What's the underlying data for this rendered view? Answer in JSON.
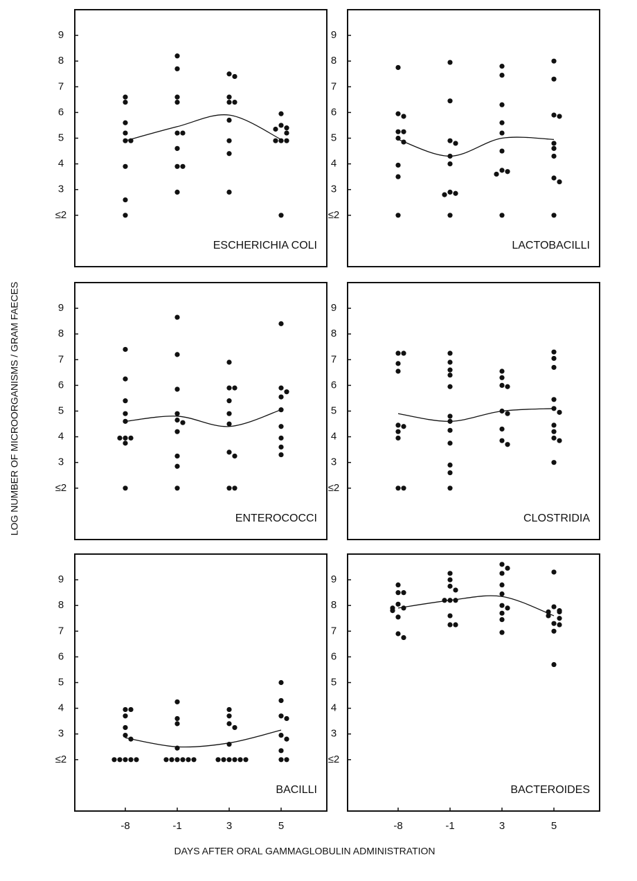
{
  "y_label": "LOG NUMBER OF MICROORGANISMS / GRAM FAECES",
  "x_label": "DAYS AFTER ORAL GAMMAGLOBULIN ADMINISTRATION",
  "chart_data": [
    {
      "type": "scatter",
      "title": "ESCHERICHIA COLI",
      "categories": [
        "-8",
        "-1",
        "3",
        "5"
      ],
      "values": [
        [
          6.6,
          6.4,
          5.6,
          5.2,
          4.9,
          4.9,
          3.9,
          2.6,
          2
        ],
        [
          8.2,
          7.7,
          6.6,
          6.4,
          5.2,
          5.2,
          4.6,
          3.9,
          3.9,
          2.9
        ],
        [
          7.5,
          7.4,
          6.6,
          6.4,
          6.4,
          5.7,
          4.9,
          4.4,
          2.9
        ],
        [
          5.95,
          5.5,
          5.4,
          5.35,
          5.2,
          4.9,
          4.9,
          4.9,
          2
        ]
      ],
      "trend": [
        4.9,
        5.45,
        5.9,
        4.95
      ],
      "color": "#111111",
      "ylim": [
        0,
        10
      ],
      "yticks": [
        {
          "value": 2,
          "label": "≤2"
        },
        3,
        4,
        5,
        6,
        7,
        8,
        9
      ]
    },
    {
      "type": "scatter",
      "title": "LACTOBACILLI",
      "categories": [
        "-8",
        "-1",
        "3",
        "5"
      ],
      "values": [
        [
          7.75,
          5.95,
          5.85,
          5.25,
          5.25,
          5,
          4.85,
          3.95,
          3.5,
          2
        ],
        [
          7.95,
          6.45,
          4.9,
          4.8,
          4.3,
          4.0,
          2.9,
          2.85,
          2.8,
          2
        ],
        [
          7.8,
          7.45,
          6.3,
          5.6,
          5.2,
          4.5,
          3.75,
          3.7,
          3.6,
          2
        ],
        [
          8,
          7.3,
          5.9,
          5.85,
          4.8,
          4.6,
          4.3,
          3.45,
          3.3,
          2
        ]
      ],
      "trend": [
        4.95,
        4.3,
        5.0,
        4.95
      ],
      "color": "#111111",
      "ylim": [
        0,
        10
      ],
      "yticks": [
        {
          "value": 2,
          "label": "≤2"
        },
        3,
        4,
        5,
        6,
        7,
        8,
        9
      ]
    },
    {
      "type": "scatter",
      "title": "ENTEROCOCCI",
      "categories": [
        "-8",
        "-1",
        "3",
        "5"
      ],
      "values": [
        [
          7.4,
          6.25,
          5.4,
          4.9,
          4.6,
          3.95,
          3.95,
          3.95,
          3.75,
          2
        ],
        [
          8.65,
          7.2,
          5.85,
          4.9,
          4.65,
          4.55,
          4.2,
          3.25,
          2.85,
          2
        ],
        [
          6.9,
          5.9,
          5.9,
          5.4,
          4.9,
          4.5,
          3.4,
          3.25,
          2,
          2
        ],
        [
          8.4,
          5.9,
          5.75,
          5.55,
          5.05,
          4.4,
          3.95,
          3.6,
          3.3
        ]
      ],
      "trend": [
        4.6,
        4.8,
        4.4,
        5.05
      ],
      "color": "#111111",
      "ylim": [
        0,
        10
      ],
      "yticks": [
        {
          "value": 2,
          "label": "≤2"
        },
        3,
        4,
        5,
        6,
        7,
        8,
        9
      ]
    },
    {
      "type": "scatter",
      "title": "CLOSTRIDIA",
      "categories": [
        "-8",
        "-1",
        "3",
        "5"
      ],
      "values": [
        [
          7.25,
          7.25,
          6.85,
          6.55,
          4.45,
          4.4,
          4.2,
          3.95,
          2,
          2
        ],
        [
          7.25,
          6.9,
          6.6,
          6.4,
          5.95,
          4.8,
          4.6,
          4.25,
          3.75,
          2.9,
          2.6,
          2
        ],
        [
          6.55,
          6.3,
          6,
          5.95,
          5,
          4.9,
          4.3,
          3.85,
          3.7
        ],
        [
          7.3,
          7.05,
          6.7,
          5.45,
          5.1,
          4.95,
          4.45,
          4.2,
          3.95,
          3.85,
          3
        ]
      ],
      "trend": [
        4.9,
        4.6,
        5.0,
        5.1
      ],
      "color": "#111111",
      "ylim": [
        0,
        10
      ],
      "yticks": [
        {
          "value": 2,
          "label": "≤2"
        },
        3,
        4,
        5,
        6,
        7,
        8,
        9
      ]
    },
    {
      "type": "scatter",
      "title": "BACILLI",
      "categories": [
        "-8",
        "-1",
        "3",
        "5"
      ],
      "values": [
        [
          3.95,
          3.95,
          3.7,
          3.25,
          2.95,
          2.8,
          2,
          2,
          2,
          2,
          2
        ],
        [
          4.25,
          3.6,
          3.4,
          2.45,
          2,
          2,
          2,
          2,
          2,
          2
        ],
        [
          3.95,
          3.7,
          3.4,
          3.25,
          2.6,
          2,
          2,
          2,
          2,
          2,
          2
        ],
        [
          5,
          4.3,
          3.7,
          3.6,
          2.95,
          2.8,
          2.35,
          2,
          2
        ]
      ],
      "trend": [
        2.85,
        2.5,
        2.65,
        3.15
      ],
      "color": "#111111",
      "ylim": [
        0,
        10
      ],
      "yticks": [
        {
          "value": 2,
          "label": "≤2"
        },
        3,
        4,
        5,
        6,
        7,
        8,
        9
      ]
    },
    {
      "type": "scatter",
      "title": "BACTEROIDES",
      "categories": [
        "-8",
        "-1",
        "3",
        "5"
      ],
      "values": [
        [
          8.8,
          8.5,
          8.5,
          8.05,
          7.9,
          7.9,
          7.8,
          7.55,
          6.9,
          6.75
        ],
        [
          9.25,
          9.0,
          8.75,
          8.6,
          8.2,
          8.2,
          8.2,
          7.6,
          7.25,
          7.25
        ],
        [
          9.6,
          9.45,
          9.25,
          8.8,
          8.45,
          8.0,
          7.9,
          7.7,
          7.45,
          6.95
        ],
        [
          9.3,
          7.95,
          7.8,
          7.75,
          7.75,
          7.6,
          7.5,
          7.3,
          7.25,
          7.0,
          5.7
        ]
      ],
      "trend": [
        7.9,
        8.2,
        8.35,
        7.6
      ],
      "color": "#111111",
      "ylim": [
        0,
        10
      ],
      "yticks": [
        {
          "value": 2,
          "label": "≤2"
        },
        3,
        4,
        5,
        6,
        7,
        8,
        9
      ]
    }
  ]
}
